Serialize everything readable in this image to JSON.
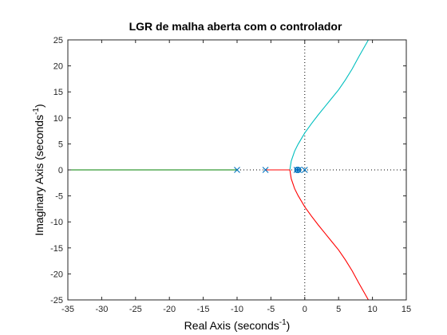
{
  "chart_data": {
    "type": "line",
    "title": "LGR de malha aberta com o controlador",
    "xlabel": "Real Axis (seconds",
    "ylabel": "Imaginary Axis (seconds",
    "axis_unit_exponent": "-1",
    "axis_unit_close": ")",
    "xlim": [
      -35,
      15
    ],
    "ylim": [
      -25,
      25
    ],
    "xticks": [
      -35,
      -30,
      -25,
      -20,
      -15,
      -10,
      -5,
      0,
      5,
      10,
      15
    ],
    "yticks": [
      -25,
      -20,
      -15,
      -10,
      -5,
      0,
      5,
      10,
      15,
      20,
      25
    ],
    "grid": false,
    "colors": {
      "cyan_branch": "#00bfbf",
      "red_branch": "#ff0000",
      "green_branch": "#008000",
      "blue_branch": "#0000ff",
      "marker": "#0072bd",
      "origin_lines": "#000000"
    },
    "series": [
      {
        "color_key": "cyan_branch",
        "x": [
          -2.2,
          -2.0,
          -1.5,
          -1.0,
          0.0,
          1.0,
          2.0,
          3.0,
          4.0,
          5.0,
          6.0,
          7.0,
          8.0,
          9.4
        ],
        "y": [
          0.0,
          1.7,
          3.6,
          4.9,
          7.1,
          8.9,
          10.6,
          12.2,
          13.8,
          15.4,
          17.3,
          19.4,
          21.8,
          25.0
        ]
      },
      {
        "color_key": "red_branch",
        "x": [
          -2.2,
          -2.0,
          -1.5,
          -1.0,
          0.0,
          1.0,
          2.0,
          3.0,
          4.0,
          5.0,
          6.0,
          7.0,
          8.0,
          9.4
        ],
        "y": [
          0.0,
          -1.7,
          -3.6,
          -4.9,
          -7.1,
          -8.9,
          -10.6,
          -12.2,
          -13.8,
          -15.4,
          -17.3,
          -19.4,
          -21.8,
          -25.0
        ]
      },
      {
        "color_key": "red_branch",
        "x": [
          -5.8,
          -2.2
        ],
        "y": [
          0,
          0
        ]
      },
      {
        "color_key": "green_branch",
        "x": [
          -35,
          -10
        ],
        "y": [
          0,
          0
        ]
      },
      {
        "color_key": "blue_branch",
        "x": [
          -1.2,
          -0.9
        ],
        "y": [
          0,
          0
        ]
      }
    ],
    "poles": [
      {
        "x": -10,
        "y": 0
      },
      {
        "x": -5.8,
        "y": 0
      },
      {
        "x": -1.2,
        "y": 0
      },
      {
        "x": -0.9,
        "y": 0
      },
      {
        "x": 0,
        "y": 0
      }
    ],
    "zeros": [
      {
        "x": -1.1,
        "y": 0
      },
      {
        "x": -1.0,
        "y": 0
      }
    ]
  }
}
